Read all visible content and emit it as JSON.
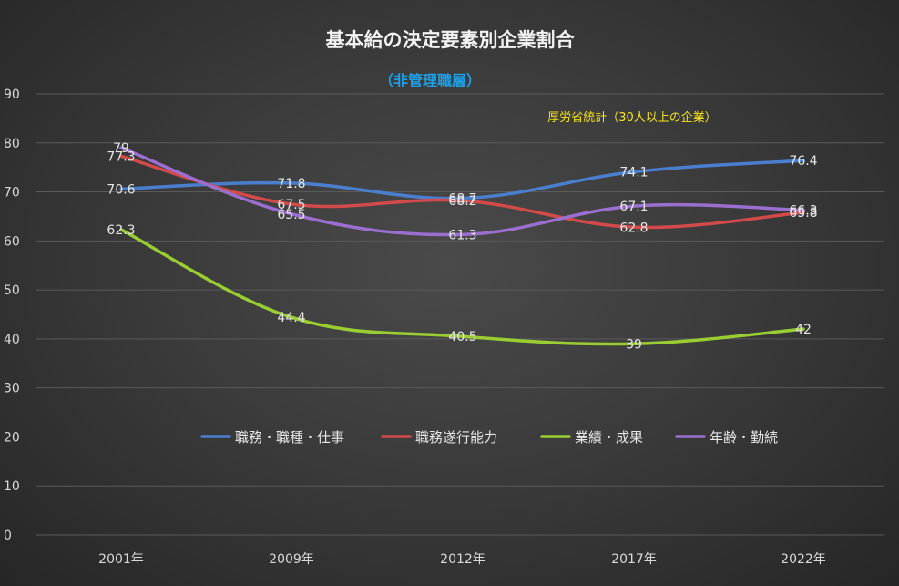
{
  "chart_data": {
    "type": "line",
    "title": "基本給の決定要素別企業割合",
    "subtitle": "（非管理職層）",
    "annotation": "厚労省統計（30人以上の企業）",
    "categories": [
      "2001年",
      "2009年",
      "2012年",
      "2017年",
      "2022年"
    ],
    "ylim": [
      0,
      90
    ],
    "yticks": [
      0,
      10,
      20,
      30,
      40,
      50,
      60,
      70,
      80,
      90
    ],
    "ytick_labels": [
      "0",
      "10",
      "20",
      "30",
      "40",
      "50",
      "60",
      "70",
      "80",
      "90"
    ],
    "grid": true,
    "legend_position": "center",
    "series": [
      {
        "name": "職務・職種・仕事",
        "color": "#4a7fd0",
        "values": [
          70.6,
          71.8,
          68.7,
          74.1,
          76.4
        ],
        "labels": [
          "70.6",
          "71.8",
          "68.7",
          "74.1",
          "76.4"
        ]
      },
      {
        "name": "職務遂行能力",
        "color": "#d24a4a",
        "values": [
          77.3,
          67.5,
          68.2,
          62.8,
          65.8
        ],
        "labels": [
          "77.3",
          "67.5",
          "68.2",
          "62.8",
          "65.8"
        ]
      },
      {
        "name": "業績・成果",
        "color": "#9acd32",
        "values": [
          62.3,
          44.4,
          40.5,
          39,
          42
        ],
        "labels": [
          "62.3",
          "44.4",
          "40.5",
          "39",
          "42"
        ]
      },
      {
        "name": "年齢・勤続",
        "color": "#9b6fd0",
        "values": [
          79,
          65.5,
          61.3,
          67.1,
          66.3
        ],
        "labels": [
          "79",
          "65.5",
          "61.3",
          "67.1",
          "66.3"
        ]
      }
    ]
  }
}
